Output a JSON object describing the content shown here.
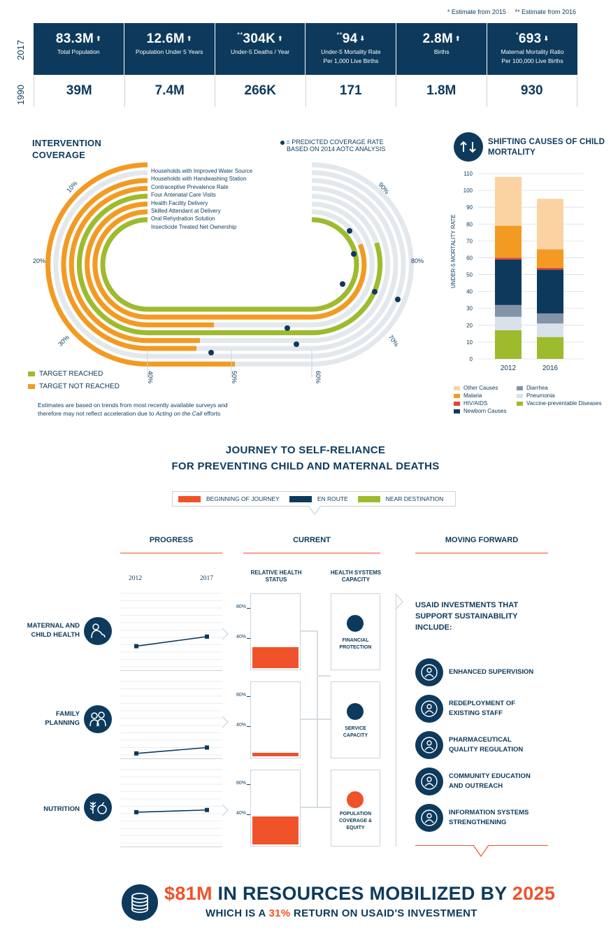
{
  "notes": {
    "n1": "* Estimate from 2015",
    "n2": "** Estimate from 2016"
  },
  "years": {
    "y2017": "2017",
    "y1990": "1990"
  },
  "stats": [
    {
      "prefix": "",
      "value": "83.3M",
      "dir": "up",
      "label": "Total Population",
      "label2": "",
      "v1990": "39M"
    },
    {
      "prefix": "",
      "value": "12.6M",
      "dir": "up",
      "label": "Population Under 5 Years",
      "label2": "",
      "v1990": "7.4M"
    },
    {
      "prefix": "**",
      "value": "304K",
      "dir": "up",
      "label": "Under-5 Deaths / Year",
      "label2": "",
      "v1990": "266K"
    },
    {
      "prefix": "**",
      "value": "94",
      "dir": "down",
      "label": "Under-5 Mortality Rate",
      "label2": "Per 1,000 Live Births",
      "v1990": "171"
    },
    {
      "prefix": "",
      "value": "2.8M",
      "dir": "up",
      "label": "Births",
      "label2": "",
      "v1990": "1.8M"
    },
    {
      "prefix": "*",
      "value": "693",
      "dir": "down",
      "label": "Maternal Mortality Ratio",
      "label2": "Per 100,000 Live Births",
      "v1990": "930"
    }
  ],
  "coverage": {
    "title1": "INTERVENTION",
    "title2": "COVERAGE",
    "predicted1": "= PREDICTED COVERAGE RATE",
    "predicted2": "BASED ON 2014 AOTC ANALYSIS",
    "tracks": [
      {
        "label": "Households with Improved Water Source",
        "status": "not_reached"
      },
      {
        "label": "Households with Handwashing Station",
        "status": "none"
      },
      {
        "label": "Contraceptive Prevalence Rate",
        "status": "not_reached"
      },
      {
        "label": "Four Antenatal Care Visits",
        "status": "not_reached"
      },
      {
        "label": "Health Facility Delivery",
        "status": "reached"
      },
      {
        "label": "Skilled Attendant at Delivery",
        "status": "not_reached"
      },
      {
        "label": "Oral Rehydration Solution",
        "status": "not_reached"
      },
      {
        "label": "Insecticide Treated Net Ownership",
        "status": "reached"
      }
    ],
    "pct_labels": {
      "p10": "10%",
      "p20": "20%",
      "p30": "30%",
      "p40": "40%",
      "p50": "50%",
      "p60": "60%",
      "p70": "70%",
      "p80": "80%",
      "p90": "90%"
    },
    "legend_reached": "TARGET REACHED",
    "legend_not": "TARGET NOT REACHED",
    "colors": {
      "reached": "#9dbb2d",
      "not_reached": "#f39a22",
      "track": "#e3e8ec",
      "navy": "#0d3a5c"
    },
    "footnote1": "Estimates are based on trends from most recently available surveys and",
    "footnote2_pre": "therefore may not reflect acceleration due to ",
    "footnote2_em": "Acting on the Call",
    "footnote2_post": " efforts"
  },
  "chart_data": {
    "type": "bar",
    "title": "SHIFTING CAUSES OF CHILD MORTALITY",
    "ylabel": "UNDER-5 MORTALITY RATE",
    "ylim": [
      0,
      110
    ],
    "yticks": [
      "0",
      "10",
      "20",
      "30",
      "40",
      "50",
      "60",
      "70",
      "80",
      "90",
      "100",
      "110"
    ],
    "categories": [
      "2012",
      "2016"
    ],
    "series": [
      {
        "name": "Vaccine-preventable Diseases",
        "color": "#9dbb2d",
        "values": [
          17,
          13
        ]
      },
      {
        "name": "Pneumonia",
        "color": "#d9e2ea",
        "values": [
          8,
          8
        ]
      },
      {
        "name": "Diarrhea",
        "color": "#8393a8",
        "values": [
          7,
          6
        ]
      },
      {
        "name": "Newborn Causes",
        "color": "#0d3a5c",
        "values": [
          27,
          26
        ]
      },
      {
        "name": "HIV/AIDS",
        "color": "#e3443a",
        "values": [
          1,
          1
        ]
      },
      {
        "name": "Malaria",
        "color": "#f39a22",
        "values": [
          19,
          11
        ]
      },
      {
        "name": "Other Causes",
        "color": "#fbd3a2",
        "values": [
          29,
          30
        ]
      }
    ],
    "legend_order": [
      "Other Causes",
      "Malaria",
      "HIV/AIDS",
      "Newborn Causes",
      "Diarrhea",
      "Pneumonia",
      "Vaccine-preventable Diseases"
    ]
  },
  "journey": {
    "title1": "JOURNEY TO SELF-RELIANCE",
    "title2": "FOR PREVENTING CHILD AND MATERNAL DEATHS",
    "legend": [
      {
        "label": "BEGINNING OF JOURNEY",
        "color": "#f0522a"
      },
      {
        "label": "EN ROUTE",
        "color": "#0d3a5c"
      },
      {
        "label": "NEAR DESTINATION",
        "color": "#9dbb2d"
      }
    ],
    "col_progress": "PROGRESS",
    "col_current": "CURRENT",
    "col_forward": "MOVING FORWARD",
    "year_start": "2012",
    "year_end": "2017",
    "sub_health": "RELATIVE HEALTH STATUS",
    "sub_capacity": "HEALTH SYSTEMS CAPACITY",
    "tick80": "80%",
    "tick40": "40%",
    "rows": [
      {
        "label1": "MATERNAL AND",
        "label2": "CHILD HEALTH",
        "progress_2012": 0.28,
        "progress_2017": 0.41,
        "health_status": 0.28
      },
      {
        "label1": "FAMILY",
        "label2": "PLANNING",
        "progress_2012": 0.02,
        "progress_2017": 0.1,
        "health_status": 0.05
      },
      {
        "label1": "NUTRITION",
        "label2": "",
        "progress_2012": 0.42,
        "progress_2017": 0.45,
        "health_status": 0.38
      }
    ],
    "capacity": [
      {
        "label1": "FINANCIAL",
        "label2": "PROTECTION",
        "label3": "",
        "color": "#0d3a5c"
      },
      {
        "label1": "SERVICE",
        "label2": "CAPACITY",
        "label3": "",
        "color": "#0d3a5c"
      },
      {
        "label1": "POPULATION",
        "label2": "COVERAGE &",
        "label3": "EQUITY",
        "color": "#f0522a"
      }
    ],
    "investments_title1": "USAID INVESTMENTS THAT",
    "investments_title2": "SUPPORT SUSTAINABILITY",
    "investments_title3": "INCLUDE:",
    "investments": [
      {
        "l1": "ENHANCED SUPERVISION",
        "l2": "",
        "icon": "supervision-icon"
      },
      {
        "l1": "REDEPLOYMENT OF",
        "l2": "EXISTING STAFF",
        "icon": "redeployment-icon"
      },
      {
        "l1": "PHARMACEUTICAL",
        "l2": "QUALITY REGULATION",
        "icon": "clipboard-check-icon"
      },
      {
        "l1": "COMMUNITY EDUCATION",
        "l2": "AND OUTREACH",
        "icon": "community-icon"
      },
      {
        "l1": "INFORMATION SYSTEMS",
        "l2": "STRENGTHENING",
        "icon": "network-icon"
      }
    ]
  },
  "bottom": {
    "amount": "$81M",
    "mid": " IN RESOURCES MOBILIZED BY ",
    "year": "2025",
    "line2_pre": "WHICH IS A ",
    "line2_pct": "31%",
    "line2_post": " RETURN ON USAID'S INVESTMENT"
  }
}
